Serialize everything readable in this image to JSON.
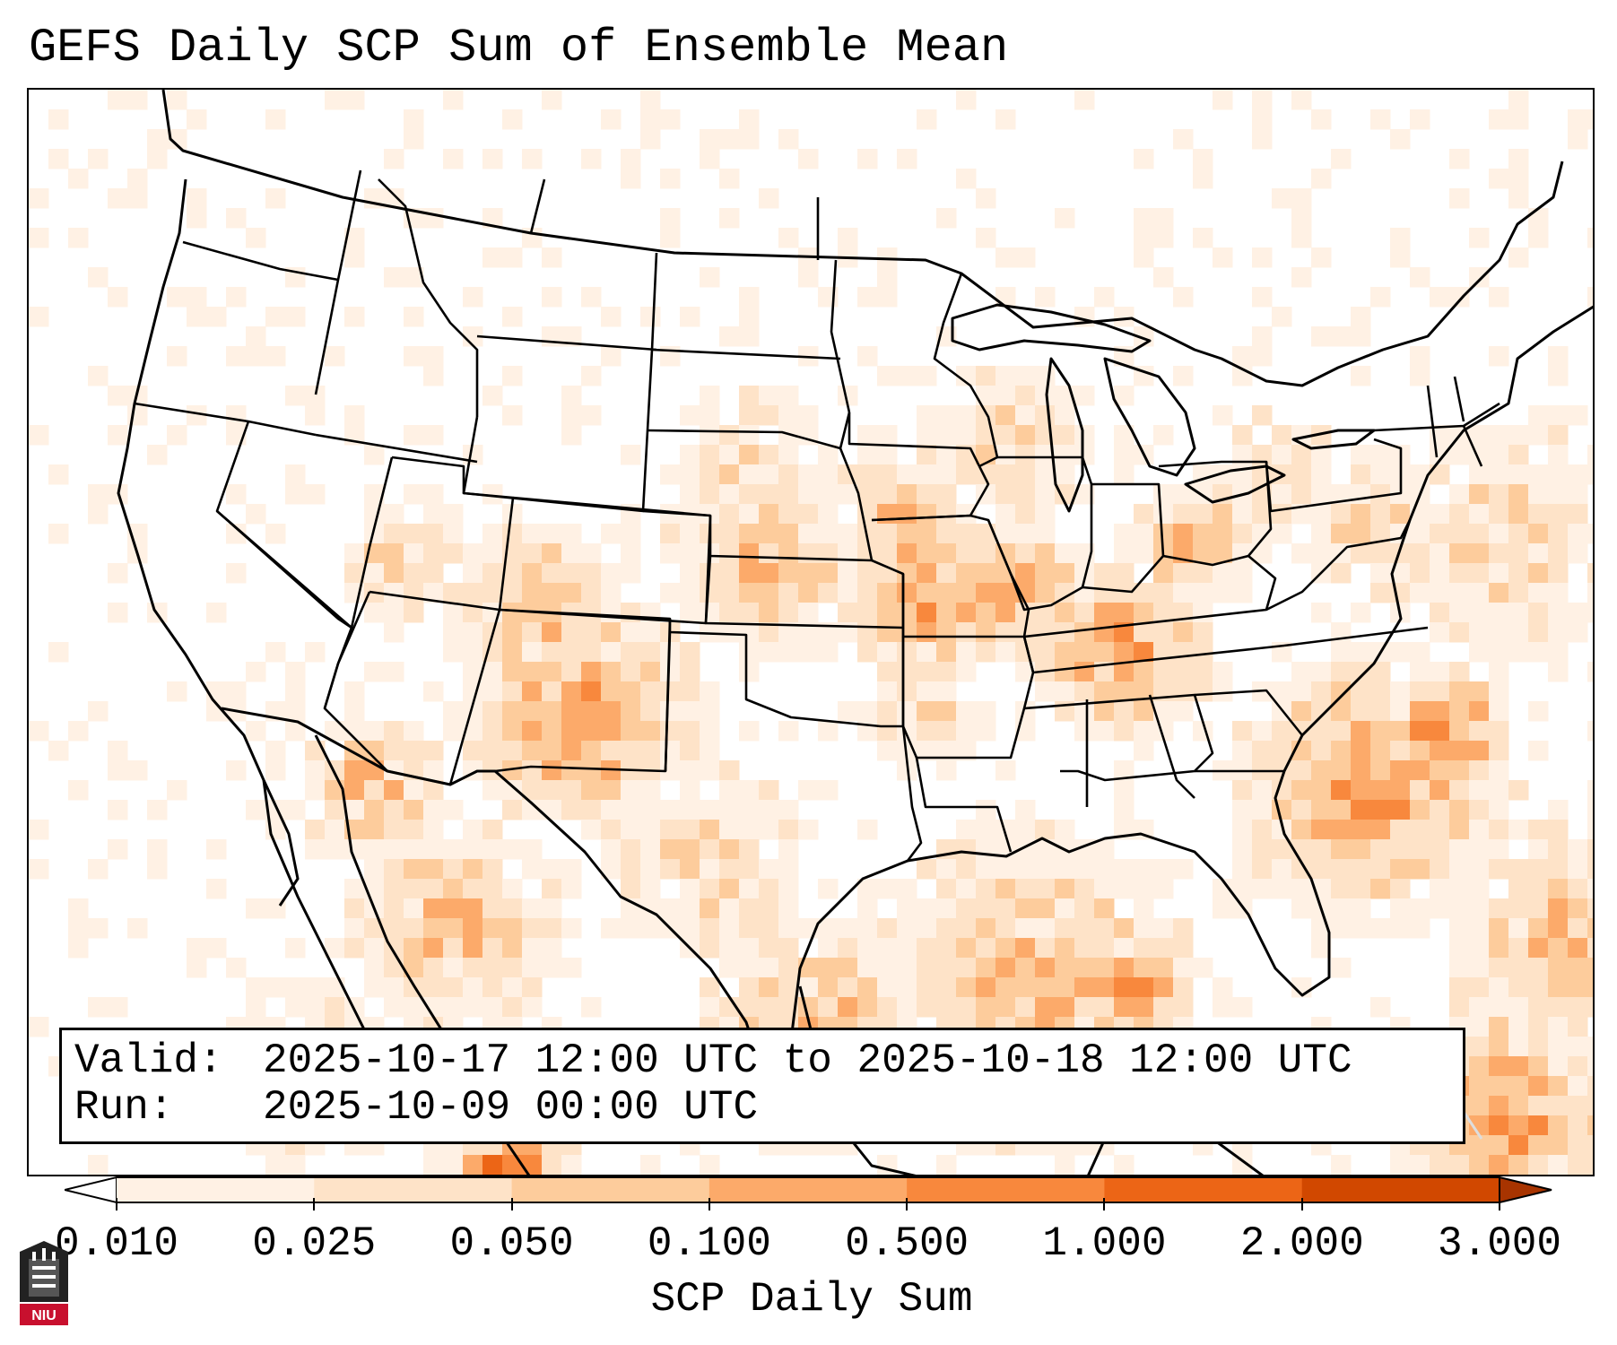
{
  "title": "GEFS Daily SCP Sum of Ensemble Mean",
  "info": {
    "valid_label": "Valid:",
    "valid_value": "2025-10-17 12:00 UTC to 2025-10-18 12:00 UTC",
    "run_label": "Run:",
    "run_value": "2025-10-09 00:00 UTC"
  },
  "colorbar": {
    "label": "SCP Daily Sum",
    "ticks": [
      "0.010",
      "0.025",
      "0.050",
      "0.100",
      "0.500",
      "1.000",
      "2.000",
      "3.000"
    ],
    "colors": [
      "#fff1e4",
      "#fee3c8",
      "#fdcc9c",
      "#fcaa6a",
      "#f8883d",
      "#ec6516",
      "#d14800"
    ],
    "under_color": "#ffffff",
    "over_color": "#a83400"
  },
  "logo": {
    "text": "NIU",
    "icon": "niu-tower-logo-icon",
    "color": "#c8102e"
  },
  "map": {
    "background": "#ffffff",
    "border_color": "#000000",
    "boundary_layers": [
      "coastlines",
      "country-borders",
      "state-borders"
    ]
  }
}
